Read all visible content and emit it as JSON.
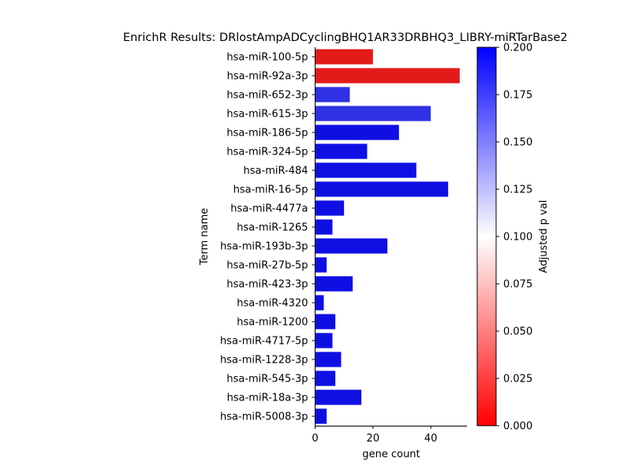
{
  "chart_data": {
    "type": "bar",
    "orientation": "horizontal",
    "title": "EnrichR Results: DRlostAmpADCyclingBHQ1AR33DRBHQ3_LIBRY-miRTarBase2",
    "xlabel": "gene count",
    "ylabel": "Term name",
    "xlim": [
      0,
      52.5
    ],
    "xticks": [
      0,
      20,
      40
    ],
    "categories": [
      "hsa-miR-100-5p",
      "hsa-miR-92a-3p",
      "hsa-miR-652-3p",
      "hsa-miR-615-3p",
      "hsa-miR-186-5p",
      "hsa-miR-324-5p",
      "hsa-miR-484",
      "hsa-miR-16-5p",
      "hsa-miR-4477a",
      "hsa-miR-1265",
      "hsa-miR-193b-3p",
      "hsa-miR-27b-5p",
      "hsa-miR-423-3p",
      "hsa-miR-4320",
      "hsa-miR-1200",
      "hsa-miR-4717-5p",
      "hsa-miR-1228-3p",
      "hsa-miR-545-3p",
      "hsa-miR-18a-3p",
      "hsa-miR-5008-3p"
    ],
    "values": [
      20,
      50,
      12,
      40,
      29,
      18,
      35,
      46,
      10,
      6,
      25,
      4,
      13,
      3,
      7,
      6,
      9,
      7,
      16,
      4
    ],
    "adjusted_p": [
      0.01,
      0.01,
      0.18,
      0.18,
      0.195,
      0.195,
      0.195,
      0.195,
      0.195,
      0.195,
      0.195,
      0.195,
      0.195,
      0.195,
      0.195,
      0.195,
      0.195,
      0.195,
      0.195,
      0.195
    ],
    "colorbar": {
      "label": "Adjusted p val",
      "range": [
        0,
        0.2
      ],
      "ticks": [
        "0.000",
        "0.025",
        "0.050",
        "0.075",
        "0.100",
        "0.125",
        "0.150",
        "0.175",
        "0.200"
      ],
      "colors": [
        "#ff0000",
        "#ffffff",
        "#0000ff"
      ]
    },
    "grid": false
  }
}
